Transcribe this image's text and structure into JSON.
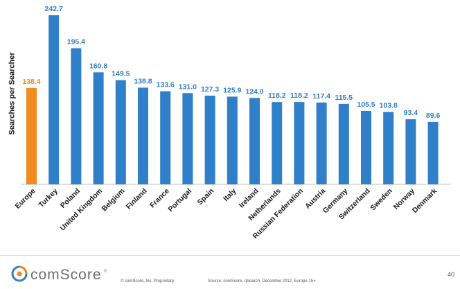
{
  "chart_data": {
    "type": "bar",
    "title": "",
    "xlabel": "",
    "ylabel": "Searches per Searcher",
    "ylim": [
      0,
      250
    ],
    "grid": false,
    "categories": [
      "Europe",
      "Turkey",
      "Poland",
      "United Kingdom",
      "Belgium",
      "Finland",
      "France",
      "Portugal",
      "Spain",
      "Italy",
      "Ireland",
      "Netherlands",
      "Russian Federation",
      "Austria",
      "Germany",
      "Switzerland",
      "Sweden",
      "Norway",
      "Denmark"
    ],
    "values": [
      138.4,
      242.7,
      195.4,
      160.8,
      149.5,
      138.8,
      133.6,
      131.0,
      127.3,
      125.9,
      124.0,
      118.2,
      118.2,
      117.4,
      115.5,
      105.5,
      103.8,
      93.4,
      89.6
    ],
    "value_labels": [
      "138.4",
      "242.7",
      "195.4",
      "160.8",
      "149.5",
      "138.8",
      "133.6",
      "131.0",
      "127.3",
      "125.9",
      "124.0",
      "118.2",
      "118.2",
      "117.4",
      "115.5",
      "105.5",
      "103.8",
      "93.4",
      "89.6"
    ],
    "highlight_category": "Europe",
    "colors": {
      "bar": "#2f7fc9",
      "highlight": "#f28a1e",
      "label": "#2f7fc9",
      "highlight_label": "#f28a1e"
    }
  },
  "footer": {
    "logo_text": "comScore",
    "logo_tm": "®",
    "copyright": "© comScore, Inc.    Proprietary.",
    "source": "Source: comScore, qSearch, December 2012, Europe 15+",
    "page_number": "40"
  }
}
